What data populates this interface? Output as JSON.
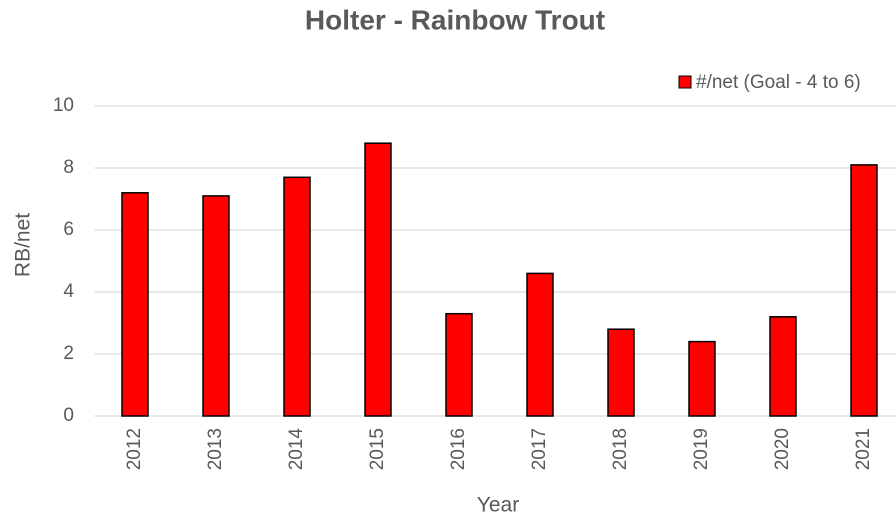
{
  "chart_data": {
    "type": "bar",
    "title": "Holter - Rainbow Trout",
    "x_label": "Year",
    "y_label": "RB/net",
    "categories": [
      "2012",
      "2013",
      "2014",
      "2015",
      "2016",
      "2017",
      "2018",
      "2019",
      "2020",
      "2021"
    ],
    "series": [
      {
        "name": "#/net (Goal - 4 to 6)",
        "color": "#ff0000",
        "values": [
          7.2,
          7.1,
          7.7,
          8.8,
          3.3,
          4.6,
          2.8,
          2.4,
          3.2,
          8.1
        ]
      }
    ],
    "ylim": [
      0,
      10
    ],
    "yticks": [
      0,
      2,
      4,
      6,
      8,
      10
    ],
    "grid": true,
    "legend": "top-right"
  }
}
